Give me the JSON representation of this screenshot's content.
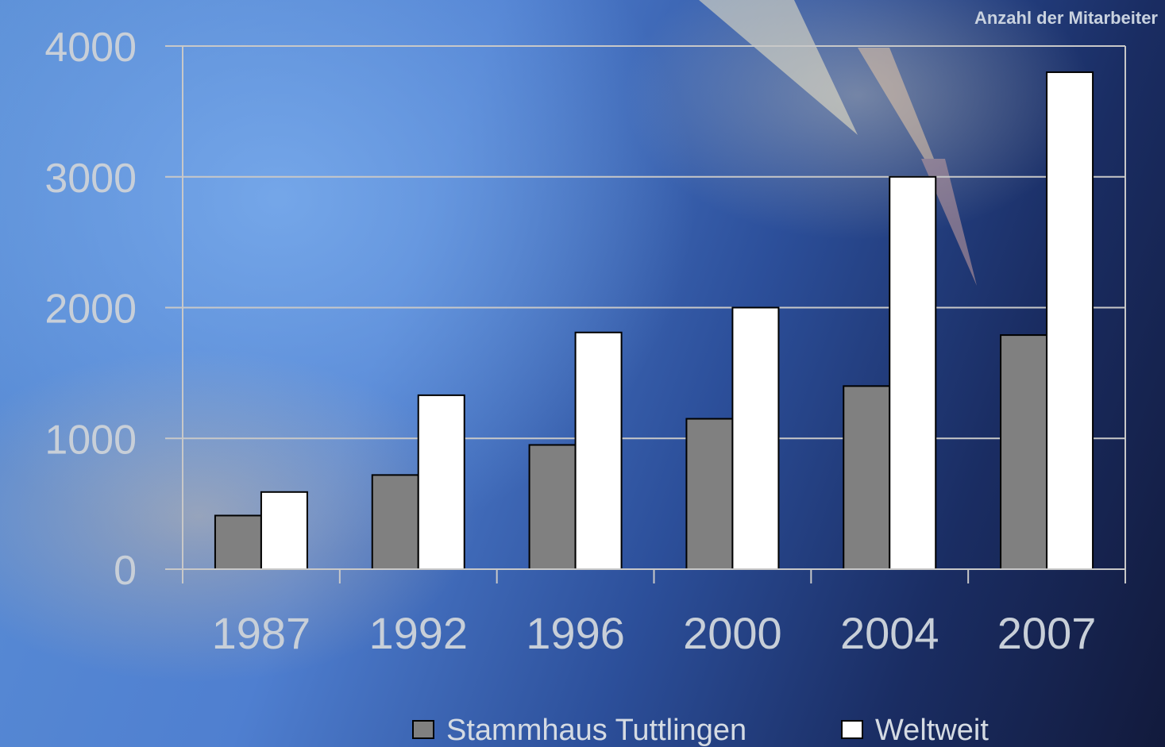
{
  "chart_data": {
    "type": "bar",
    "title": "Anzahl der Mitarbeiter",
    "categories": [
      "1987",
      "1992",
      "1996",
      "2000",
      "2004",
      "2007"
    ],
    "series": [
      {
        "name": "Stammhaus Tuttlingen",
        "color": "#808080",
        "values": [
          410,
          720,
          950,
          1150,
          1400,
          1790
        ]
      },
      {
        "name": "Weltweit",
        "color": "#ffffff",
        "values": [
          590,
          1330,
          1810,
          2000,
          3000,
          3800
        ]
      }
    ],
    "ylim": [
      0,
      4000
    ],
    "yticks": [
      "0",
      "1000",
      "2000",
      "3000",
      "4000"
    ],
    "grid": true,
    "legend": "bottom"
  }
}
